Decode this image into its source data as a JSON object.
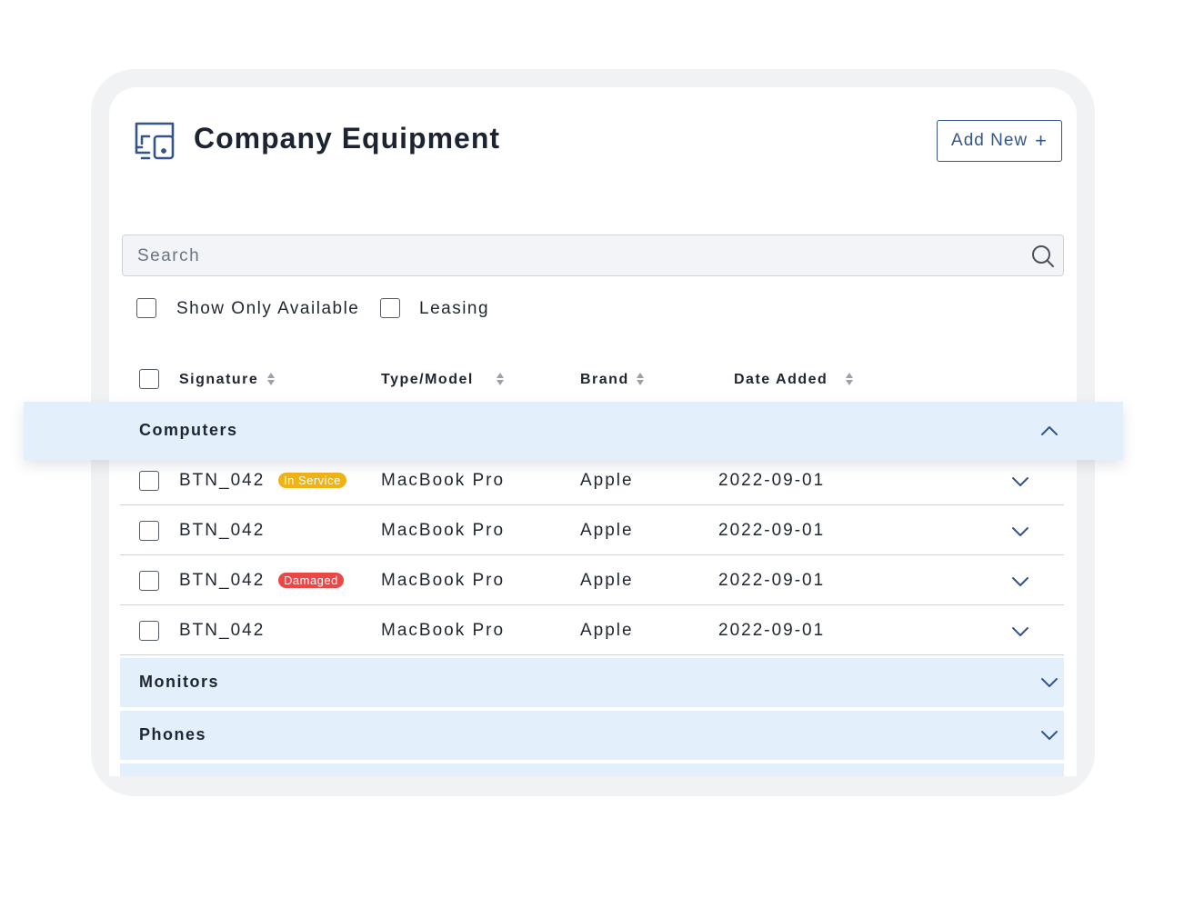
{
  "header": {
    "title": "Company Equipment",
    "add_button_label": "Add New",
    "add_button_icon": "+"
  },
  "search": {
    "placeholder": "Search",
    "value": ""
  },
  "filters": [
    {
      "label": "Show Only Available",
      "checked": false
    },
    {
      "label": "Leasing",
      "checked": false
    }
  ],
  "table": {
    "columns": [
      "Signature",
      "Type/Model",
      "Brand",
      "Date Added"
    ],
    "groups": [
      {
        "name": "Computers",
        "expanded": true,
        "rows": [
          {
            "signature": "BTN_042",
            "badge": "In Service",
            "badge_color": "#f0b315",
            "type_model": "MacBook Pro",
            "brand": "Apple",
            "date_added": "2022-09-01"
          },
          {
            "signature": "BTN_042",
            "badge": "",
            "badge_color": "",
            "type_model": "MacBook Pro",
            "brand": "Apple",
            "date_added": "2022-09-01"
          },
          {
            "signature": "BTN_042",
            "badge": "Damaged",
            "badge_color": "#ec4747",
            "type_model": "MacBook Pro",
            "brand": "Apple",
            "date_added": "2022-09-01"
          },
          {
            "signature": "BTN_042",
            "badge": "",
            "badge_color": "",
            "type_model": "MacBook Pro",
            "brand": "Apple",
            "date_added": "2022-09-01"
          }
        ]
      },
      {
        "name": "Monitors",
        "expanded": false
      },
      {
        "name": "Phones",
        "expanded": false
      }
    ]
  },
  "colors": {
    "accent": "#34558b",
    "group_background": "#e3effb",
    "badge_in_service": "#f0b315",
    "badge_damaged": "#ec4747"
  },
  "icons": {
    "title": "devices-icon",
    "search": "search-icon",
    "sort": "sort-icon",
    "expand": "chevron-down-icon",
    "collapse": "chevron-up-icon"
  }
}
